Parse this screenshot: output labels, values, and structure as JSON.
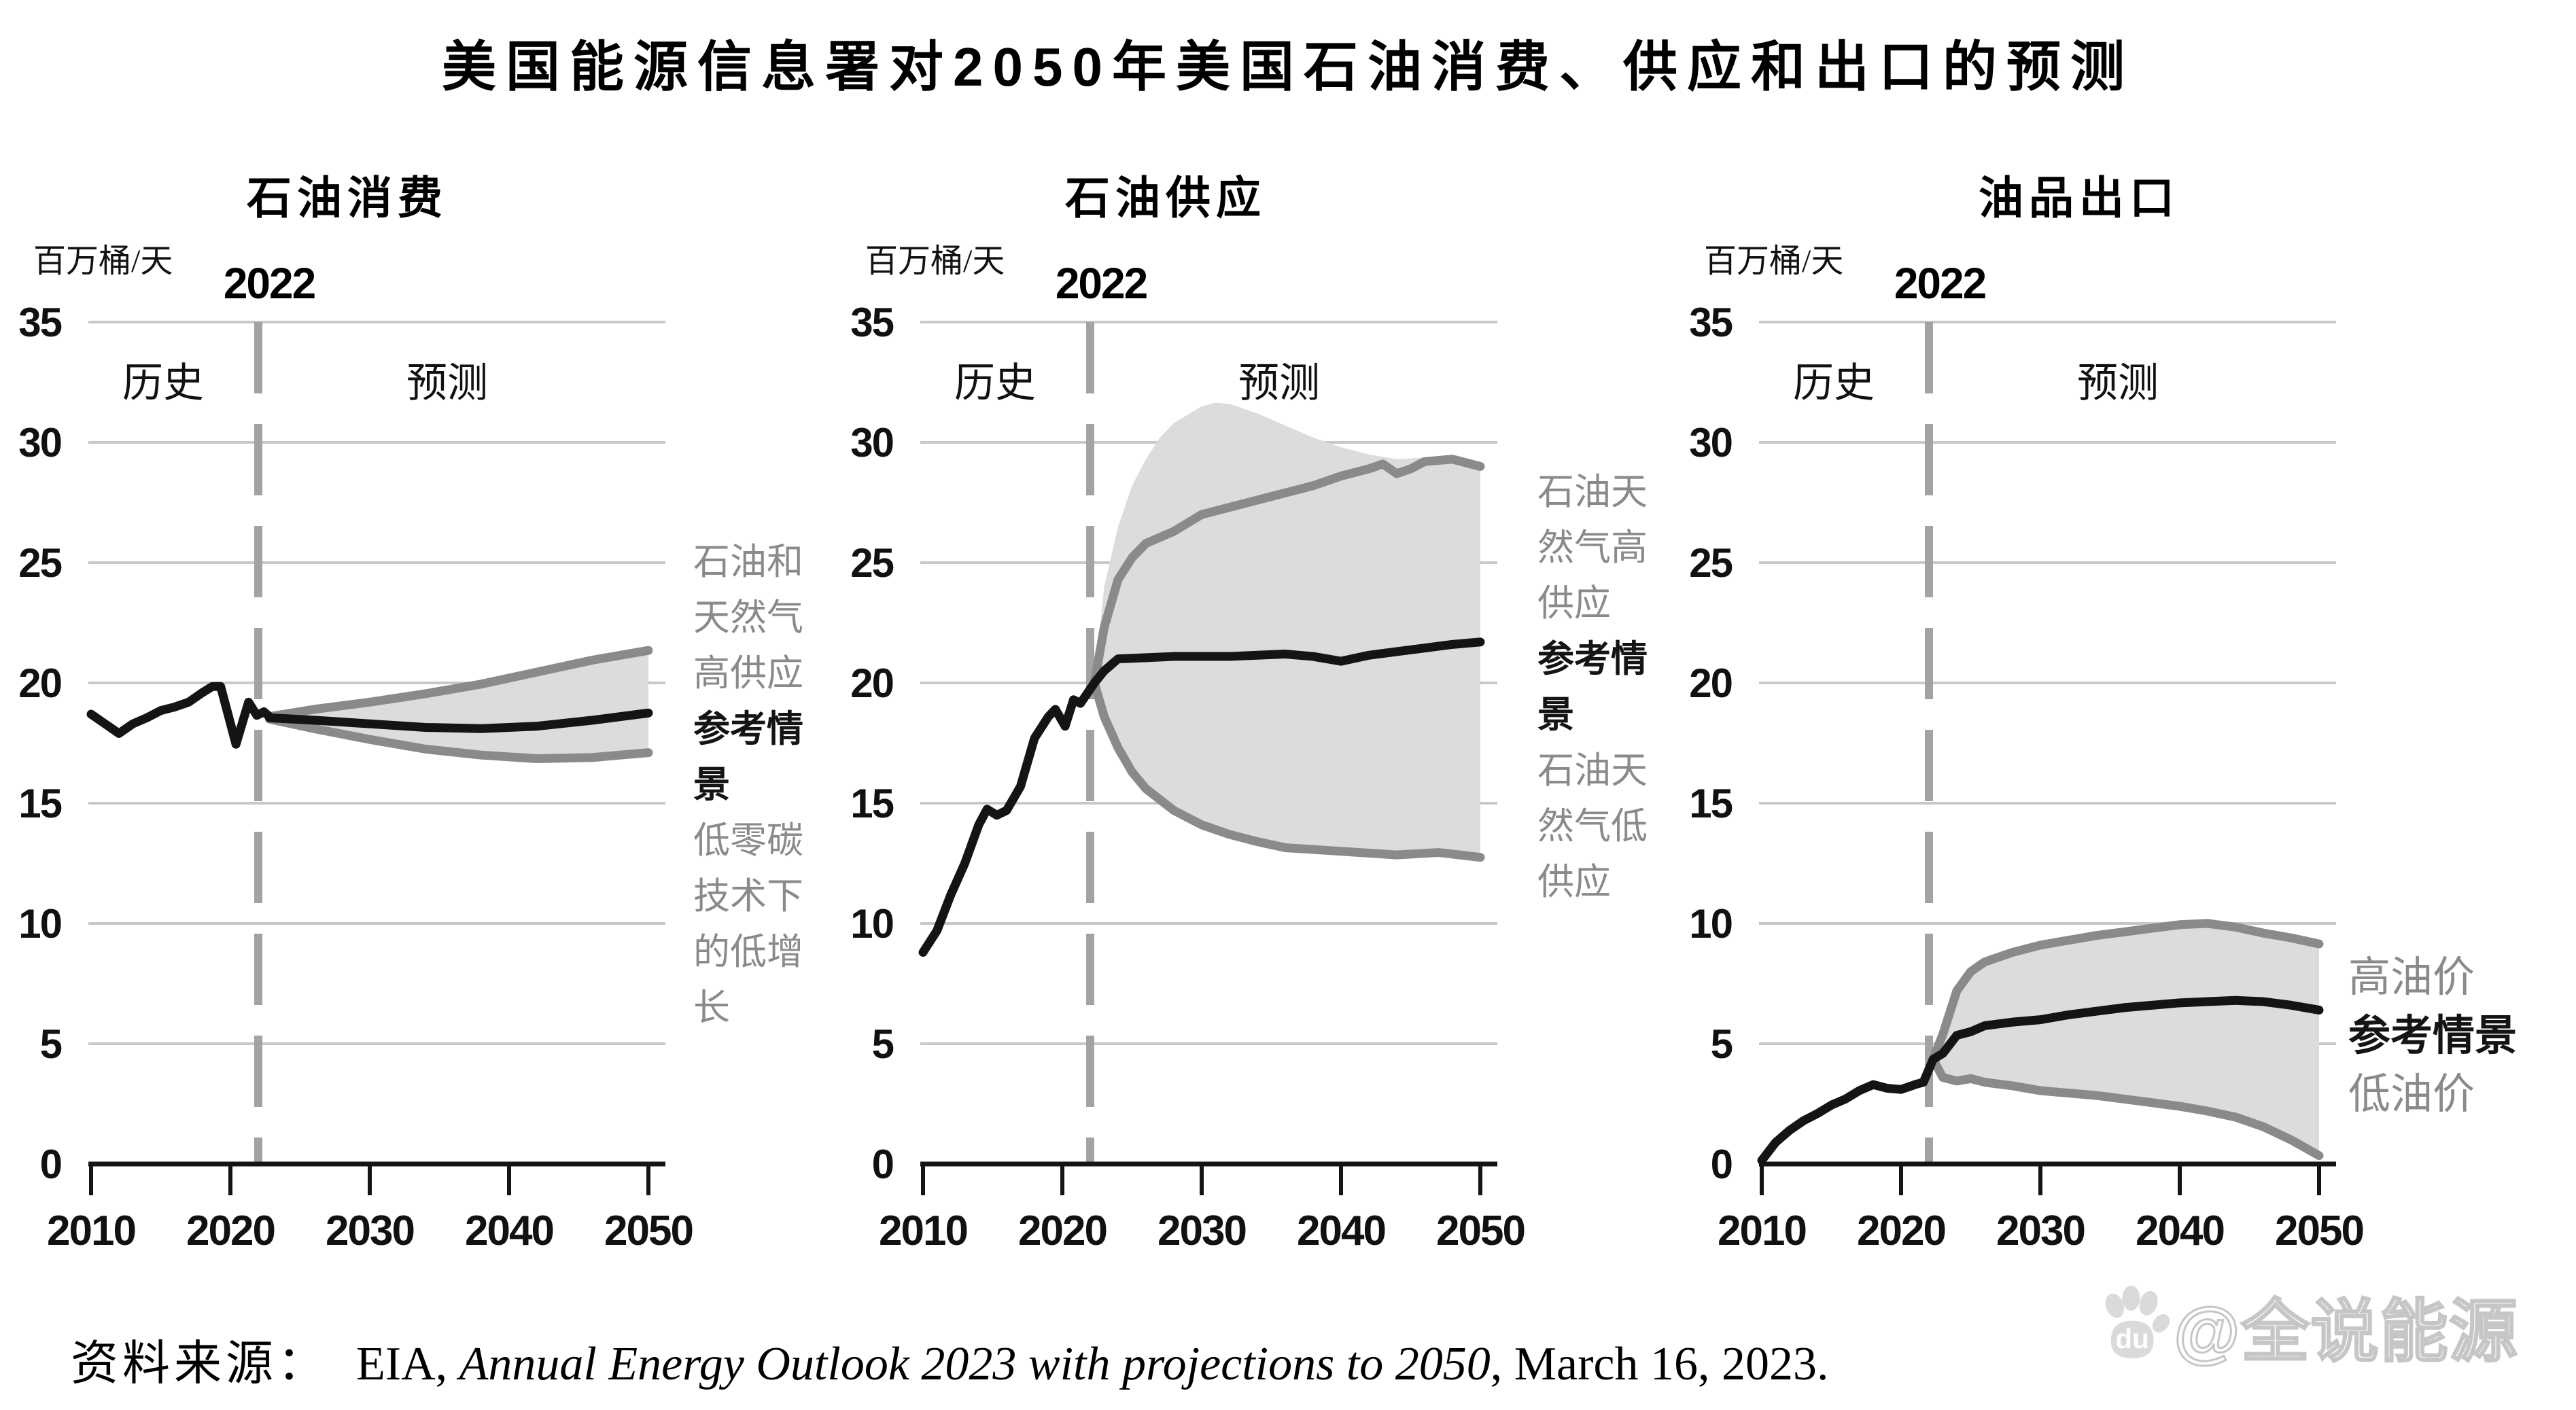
{
  "page": {
    "title": "美国能源信息署对2050年美国石油消费、供应和出口的预测",
    "source": {
      "label": "资料来源：",
      "pre": "EIA, ",
      "report_italic": "Annual Energy Outlook 2023 with projections to 2050",
      "post": ", March 16, 2023."
    },
    "watermark": {
      "icon": "baidu-paw-icon",
      "paw_text": "du",
      "text": "@全说能源"
    }
  },
  "shared": {
    "unit_label": "百万桶/天",
    "divider_label": "2022",
    "history_label": "历史",
    "forecast_label": "预测",
    "colors": {
      "line_black": "#141414",
      "line_gray": "#8a8a8a",
      "band": "#dcdcdc",
      "grid": "#c8c8c8",
      "divider": "#a3a3a3",
      "axis": "#141414",
      "annotation_gray": "#8a8a8a",
      "annotation_black": "#141414"
    }
  },
  "chart_data": [
    {
      "type": "line",
      "title": "石油消费",
      "xlabel": "",
      "ylabel": "百万桶/天",
      "xlim": [
        2010,
        2050
      ],
      "ylim": [
        0,
        35
      ],
      "x_ticks": [
        2010,
        2020,
        2030,
        2040,
        2050
      ],
      "y_ticks": [
        0,
        5,
        10,
        15,
        20,
        25,
        30,
        35
      ],
      "grid": true,
      "divider_year": 2022,
      "annotations": [
        {
          "text": "石油和天然气高供应",
          "tone": "gray"
        },
        {
          "text": "参考情景",
          "tone": "black"
        },
        {
          "text": "低零碳技术下的低增长",
          "tone": "gray"
        }
      ],
      "series": [
        {
          "name": "历史",
          "role": "history",
          "x": [
            2010,
            2011,
            2012,
            2013,
            2014,
            2015,
            2016,
            2017,
            2018,
            2018.7,
            2019.3,
            2020.4,
            2021.3,
            2021.9,
            2022.4,
            2022.8
          ],
          "y": [
            18.7,
            18.3,
            17.9,
            18.3,
            18.55,
            18.85,
            19.0,
            19.2,
            19.6,
            19.85,
            19.85,
            17.45,
            19.2,
            18.65,
            18.8,
            18.6
          ]
        },
        {
          "name": "石油和天然气高供应",
          "role": "upper",
          "x": [
            2022.8,
            2026,
            2030,
            2034,
            2038,
            2042,
            2046,
            2050
          ],
          "y": [
            18.6,
            18.9,
            19.2,
            19.55,
            19.95,
            20.45,
            20.95,
            21.35
          ]
        },
        {
          "name": "参考情景",
          "role": "reference",
          "x": [
            2022.8,
            2026,
            2030,
            2034,
            2038,
            2042,
            2046,
            2050
          ],
          "y": [
            18.55,
            18.45,
            18.3,
            18.15,
            18.1,
            18.2,
            18.45,
            18.75
          ]
        },
        {
          "name": "低零碳技术下的低增长",
          "role": "lower",
          "x": [
            2022.8,
            2026,
            2030,
            2034,
            2038,
            2042,
            2046,
            2050
          ],
          "y": [
            18.5,
            18.1,
            17.65,
            17.25,
            17.0,
            16.85,
            16.9,
            17.1
          ]
        }
      ]
    },
    {
      "type": "line",
      "title": "石油供应",
      "xlabel": "",
      "ylabel": "百万桶/天",
      "xlim": [
        2010,
        2050
      ],
      "ylim": [
        0,
        35
      ],
      "x_ticks": [
        2010,
        2020,
        2030,
        2040,
        2050
      ],
      "y_ticks": [
        0,
        5,
        10,
        15,
        20,
        25,
        30,
        35
      ],
      "grid": true,
      "divider_year": 2022,
      "annotations": [
        {
          "text": "石油天然气高供应",
          "tone": "gray"
        },
        {
          "text": "参考情景",
          "tone": "black"
        },
        {
          "text": "石油天然气低供应",
          "tone": "gray"
        }
      ],
      "band": {
        "x": [
          2022.3,
          2023,
          2024,
          2025,
          2026,
          2027,
          2028,
          2030,
          2031,
          2032,
          2034,
          2036,
          2038,
          2040,
          2042,
          2044,
          2047,
          2050
        ],
        "y": [
          20.0,
          24.0,
          26.5,
          28.2,
          29.3,
          30.2,
          30.8,
          31.5,
          31.65,
          31.6,
          31.2,
          30.7,
          30.2,
          29.8,
          29.5,
          29.3,
          29.4,
          29.1
        ]
      },
      "series": [
        {
          "name": "历史",
          "role": "history",
          "x": [
            2010,
            2011,
            2012,
            2013,
            2014,
            2014.6,
            2015.3,
            2016,
            2017,
            2018,
            2019,
            2019.5,
            2020.2,
            2020.8,
            2021.3,
            2022.3
          ],
          "y": [
            8.8,
            9.7,
            11.2,
            12.5,
            14.1,
            14.75,
            14.5,
            14.7,
            15.7,
            17.7,
            18.6,
            18.9,
            18.2,
            19.3,
            19.15,
            20.0
          ]
        },
        {
          "name": "石油天然气高供应",
          "role": "upper",
          "x": [
            2022.3,
            2023,
            2024,
            2025,
            2026,
            2028,
            2030,
            2032,
            2034,
            2036,
            2038,
            2040,
            2042,
            2043,
            2044,
            2045,
            2046,
            2048,
            2050
          ],
          "y": [
            20.0,
            22.3,
            24.3,
            25.2,
            25.8,
            26.3,
            27.0,
            27.3,
            27.6,
            27.9,
            28.2,
            28.6,
            28.9,
            29.1,
            28.7,
            28.9,
            29.2,
            29.3,
            29.0
          ]
        },
        {
          "name": "参考情景",
          "role": "reference",
          "x": [
            2022.3,
            2023,
            2024,
            2026,
            2028,
            2030,
            2032,
            2034,
            2036,
            2038,
            2040,
            2042,
            2044,
            2046,
            2048,
            2050
          ],
          "y": [
            20.0,
            20.5,
            21.0,
            21.05,
            21.1,
            21.1,
            21.1,
            21.15,
            21.2,
            21.1,
            20.9,
            21.15,
            21.3,
            21.45,
            21.6,
            21.7
          ]
        },
        {
          "name": "石油天然气低供应",
          "role": "lower",
          "x": [
            2022.3,
            2023,
            2024,
            2025,
            2026,
            2028,
            2030,
            2032,
            2034,
            2036,
            2040,
            2044,
            2047,
            2050
          ],
          "y": [
            20.0,
            18.6,
            17.3,
            16.3,
            15.6,
            14.7,
            14.1,
            13.7,
            13.4,
            13.15,
            13.0,
            12.85,
            12.95,
            12.75
          ]
        }
      ]
    },
    {
      "type": "line",
      "title": "油品出口",
      "xlabel": "",
      "ylabel": "百万桶/天",
      "xlim": [
        2010,
        2050
      ],
      "ylim": [
        0,
        35
      ],
      "x_ticks": [
        2010,
        2020,
        2030,
        2040,
        2050
      ],
      "y_ticks": [
        0,
        5,
        10,
        15,
        20,
        25,
        30,
        35
      ],
      "grid": true,
      "divider_year": 2022,
      "annotations": [
        {
          "text": "高油价",
          "tone": "gray"
        },
        {
          "text": "参考情景",
          "tone": "black"
        },
        {
          "text": "低油价",
          "tone": "gray"
        }
      ],
      "series": [
        {
          "name": "历史",
          "role": "history",
          "x": [
            2010,
            2011,
            2012,
            2013,
            2014,
            2015,
            2016,
            2017,
            2018,
            2019,
            2020,
            2021,
            2021.6,
            2022.3
          ],
          "y": [
            0.15,
            0.9,
            1.4,
            1.8,
            2.1,
            2.45,
            2.7,
            3.05,
            3.3,
            3.15,
            3.1,
            3.3,
            3.4,
            4.35
          ]
        },
        {
          "name": "高油价",
          "role": "upper",
          "x": [
            2022.3,
            2023,
            2024,
            2025,
            2026,
            2027,
            2028,
            2030,
            2032,
            2034,
            2036,
            2038,
            2040,
            2042,
            2044,
            2046,
            2048,
            2050
          ],
          "y": [
            4.35,
            5.4,
            7.2,
            8.0,
            8.4,
            8.6,
            8.8,
            9.1,
            9.3,
            9.5,
            9.65,
            9.8,
            9.95,
            10.0,
            9.85,
            9.6,
            9.4,
            9.15
          ]
        },
        {
          "name": "参考情景",
          "role": "reference",
          "x": [
            2022.3,
            2023,
            2024,
            2025,
            2026,
            2028,
            2030,
            2032,
            2034,
            2036,
            2038,
            2040,
            2042,
            2044,
            2046,
            2048,
            2050
          ],
          "y": [
            4.35,
            4.6,
            5.35,
            5.5,
            5.75,
            5.9,
            6.0,
            6.2,
            6.35,
            6.5,
            6.6,
            6.7,
            6.75,
            6.8,
            6.75,
            6.6,
            6.4
          ]
        },
        {
          "name": "低油价",
          "role": "lower",
          "x": [
            2022.3,
            2023,
            2024,
            2025,
            2026,
            2028,
            2030,
            2034,
            2038,
            2040,
            2042,
            2044,
            2046,
            2048,
            2050
          ],
          "y": [
            4.35,
            3.6,
            3.45,
            3.55,
            3.4,
            3.25,
            3.05,
            2.85,
            2.55,
            2.4,
            2.2,
            1.95,
            1.55,
            1.0,
            0.35
          ]
        }
      ]
    }
  ]
}
